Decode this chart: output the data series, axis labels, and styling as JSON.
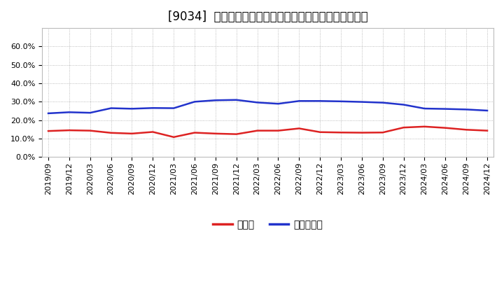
{
  "title": "[9034]  現預金、有利子負債の総資産に対する比率の推移",
  "xlabel": "",
  "ylabel": "",
  "ylim": [
    0.0,
    0.7
  ],
  "yticks": [
    0.0,
    0.1,
    0.2,
    0.3,
    0.4,
    0.5,
    0.6
  ],
  "x_labels": [
    "2019/09",
    "2019/12",
    "2020/03",
    "2020/06",
    "2020/09",
    "2020/12",
    "2021/03",
    "2021/06",
    "2021/09",
    "2021/12",
    "2022/03",
    "2022/06",
    "2022/09",
    "2022/12",
    "2023/03",
    "2023/06",
    "2023/09",
    "2023/12",
    "2024/03",
    "2024/06",
    "2024/09",
    "2024/12"
  ],
  "cash": [
    0.141,
    0.145,
    0.143,
    0.131,
    0.127,
    0.136,
    0.108,
    0.132,
    0.127,
    0.124,
    0.143,
    0.143,
    0.155,
    0.135,
    0.133,
    0.132,
    0.133,
    0.16,
    0.165,
    0.158,
    0.148,
    0.143
  ],
  "debt": [
    0.237,
    0.243,
    0.24,
    0.265,
    0.262,
    0.266,
    0.265,
    0.3,
    0.308,
    0.31,
    0.296,
    0.289,
    0.304,
    0.304,
    0.302,
    0.299,
    0.295,
    0.284,
    0.263,
    0.261,
    0.258,
    0.252
  ],
  "cash_color": "#dd2222",
  "debt_color": "#2233cc",
  "line_width": 1.8,
  "background_color": "#ffffff",
  "plot_bg_color": "#ffffff",
  "grid_color": "#aaaaaa",
  "legend_cash": "現預金",
  "legend_debt": "有利子負債",
  "title_fontsize": 12,
  "tick_fontsize": 8,
  "legend_fontsize": 10
}
